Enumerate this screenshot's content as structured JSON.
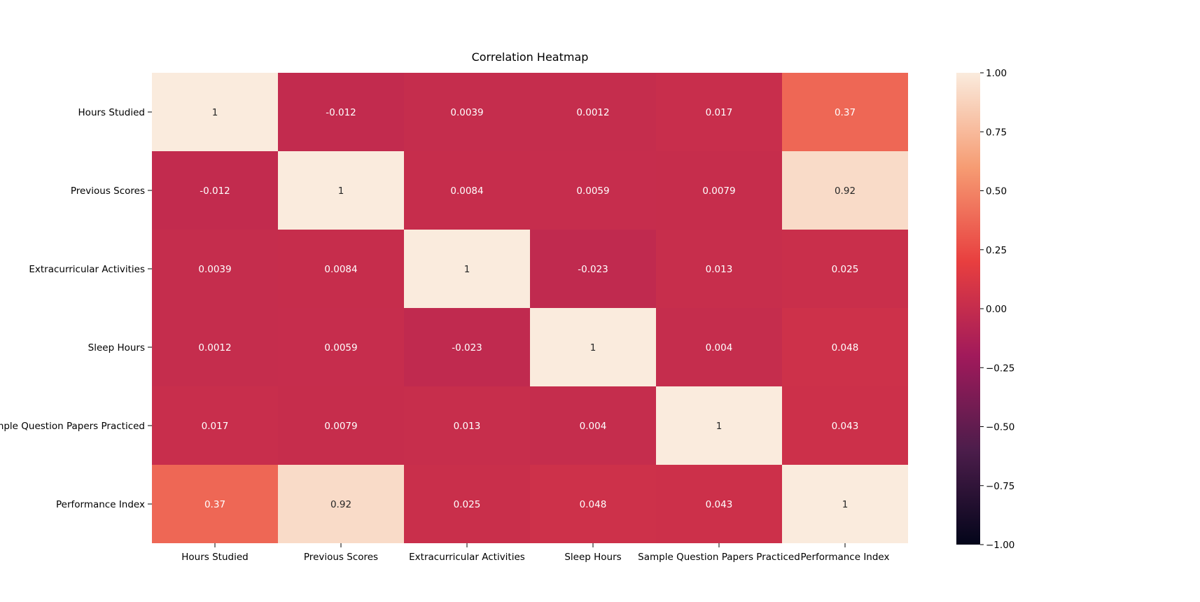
{
  "chart_data": {
    "type": "heatmap",
    "title": "Correlation Heatmap",
    "xlabel": "",
    "ylabel": "",
    "rows": [
      "Hours Studied",
      "Previous Scores",
      "Extracurricular Activities",
      "Sleep Hours",
      "Sample Question Papers Practiced",
      "Performance Index"
    ],
    "columns": [
      "Hours Studied",
      "Previous Scores",
      "Extracurricular Activities",
      "Sleep Hours",
      "Sample Question Papers Practiced",
      "Performance Index"
    ],
    "values": [
      [
        1,
        -0.012,
        0.0039,
        0.0012,
        0.017,
        0.37
      ],
      [
        -0.012,
        1,
        0.0084,
        0.0059,
        0.0079,
        0.92
      ],
      [
        0.0039,
        0.0084,
        1,
        -0.023,
        0.013,
        0.025
      ],
      [
        0.0012,
        0.0059,
        -0.023,
        1,
        0.004,
        0.048
      ],
      [
        0.017,
        0.0079,
        0.013,
        0.004,
        1,
        0.043
      ],
      [
        0.37,
        0.92,
        0.025,
        0.048,
        0.043,
        1
      ]
    ],
    "annotations": [
      [
        "1",
        "-0.012",
        "0.0039",
        "0.0012",
        "0.017",
        "0.37"
      ],
      [
        "-0.012",
        "1",
        "0.0084",
        "0.0059",
        "0.0079",
        "0.92"
      ],
      [
        "0.0039",
        "0.0084",
        "1",
        "-0.023",
        "0.013",
        "0.025"
      ],
      [
        "0.0012",
        "0.0059",
        "-0.023",
        "1",
        "0.004",
        "0.048"
      ],
      [
        "0.017",
        "0.0079",
        "0.013",
        "0.004",
        "1",
        "0.043"
      ],
      [
        "0.37",
        "0.92",
        "0.025",
        "0.048",
        "0.043",
        "1"
      ]
    ],
    "colorbar": {
      "vmin": -1,
      "vmax": 1,
      "ticks": [
        1.0,
        0.75,
        0.5,
        0.25,
        0.0,
        -0.25,
        -0.5,
        -0.75,
        -1.0
      ],
      "tick_labels": [
        "1.00",
        "0.75",
        "0.50",
        "0.25",
        "0.00",
        "−0.25",
        "−0.50",
        "−0.75",
        "−1.00"
      ],
      "colormap": "rocket",
      "colormap_stops": [
        "#03051a",
        "#4c1d4b",
        "#a11a5b",
        "#e83f3f",
        "#f69c73",
        "#faebdd"
      ]
    },
    "grid": false,
    "legend": "colorbar-right"
  }
}
